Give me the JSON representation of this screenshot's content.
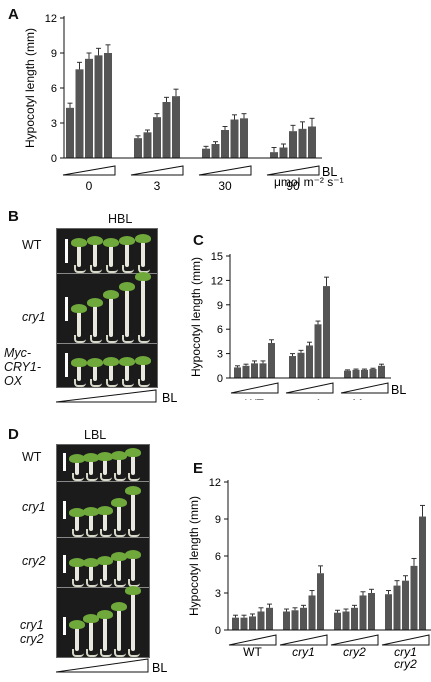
{
  "panels": {
    "A": {
      "label": "A"
    },
    "B": {
      "label": "B",
      "title": "HBL",
      "rows": [
        "WT",
        "cry1",
        "Myc-CRY1-OX"
      ],
      "bl": "BL"
    },
    "C": {
      "label": "C"
    },
    "D": {
      "label": "D",
      "title": "LBL",
      "rows": [
        "WT",
        "cry1",
        "cry2",
        "cry1 cry2"
      ],
      "bl": "BL"
    },
    "E": {
      "label": "E"
    }
  },
  "chart_data": [
    {
      "id": "A",
      "type": "bar",
      "ylabel": "Hypocotyl length (mm)",
      "ylim": [
        0,
        12
      ],
      "yticks": [
        0,
        3,
        6,
        9,
        12
      ],
      "groups": [
        "0",
        "3",
        "30",
        "90"
      ],
      "unit_label": "μmol m⁻² s⁻¹",
      "ramp_label": "BL",
      "values": [
        [
          4.3,
          7.6,
          8.5,
          8.8,
          9.0
        ],
        [
          1.7,
          2.2,
          3.5,
          4.8,
          5.3
        ],
        [
          0.8,
          1.2,
          2.4,
          3.3,
          3.4
        ],
        [
          0.5,
          0.9,
          2.3,
          2.5,
          2.7
        ]
      ],
      "errors": [
        [
          0.4,
          0.6,
          0.5,
          0.6,
          0.7
        ],
        [
          0.2,
          0.2,
          0.3,
          0.4,
          0.6
        ],
        [
          0.2,
          0.2,
          0.3,
          0.4,
          0.4
        ],
        [
          0.4,
          0.3,
          0.5,
          0.6,
          0.7
        ]
      ],
      "color": "#555555"
    },
    {
      "id": "C",
      "type": "bar",
      "ylabel": "Hypocotyl length (mm)",
      "ylim": [
        0,
        15
      ],
      "yticks": [
        0,
        3,
        6,
        9,
        12,
        15
      ],
      "groups": [
        "WT",
        "cry1",
        "Myc-CRY1-OX"
      ],
      "ramp_label": "BL",
      "values": [
        [
          1.3,
          1.5,
          1.8,
          1.8,
          4.3
        ],
        [
          2.7,
          3.1,
          4.0,
          6.6,
          11.3
        ],
        [
          0.9,
          1.0,
          1.0,
          1.1,
          1.5
        ]
      ],
      "errors": [
        [
          0.2,
          0.2,
          0.3,
          0.3,
          0.4
        ],
        [
          0.3,
          0.3,
          0.4,
          0.4,
          1.1
        ],
        [
          0.1,
          0.1,
          0.1,
          0.1,
          0.2
        ]
      ],
      "color": "#555555"
    },
    {
      "id": "E",
      "type": "bar",
      "ylabel": "Hypocotyl length (mm)",
      "ylim": [
        0,
        12
      ],
      "yticks": [
        0,
        3,
        6,
        9,
        12
      ],
      "groups": [
        "WT",
        "cry1",
        "cry2",
        "cry1 cry2"
      ],
      "ramp_label": "BL",
      "values": [
        [
          1.0,
          1.0,
          1.1,
          1.5,
          1.8
        ],
        [
          1.5,
          1.6,
          1.8,
          2.8,
          4.6
        ],
        [
          1.4,
          1.5,
          1.8,
          2.8,
          3.0
        ],
        [
          2.9,
          3.6,
          4.0,
          5.2,
          9.2
        ]
      ],
      "errors": [
        [
          0.2,
          0.2,
          0.2,
          0.3,
          0.3
        ],
        [
          0.2,
          0.2,
          0.2,
          0.4,
          0.6
        ],
        [
          0.2,
          0.2,
          0.2,
          0.3,
          0.3
        ],
        [
          0.3,
          0.4,
          0.4,
          0.6,
          0.9
        ]
      ],
      "color": "#555555"
    }
  ]
}
